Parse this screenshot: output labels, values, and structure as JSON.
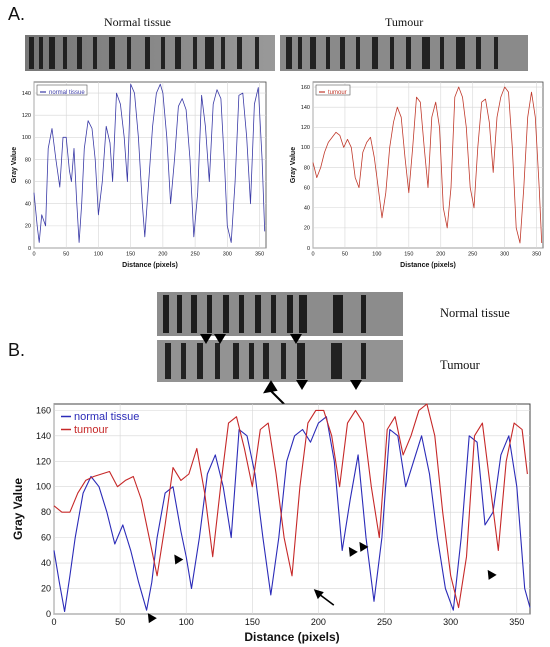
{
  "panels": {
    "a": {
      "letter": "A.",
      "left_caption": "Normal tissue",
      "right_caption": "Tumour"
    },
    "b": {
      "letter": "B.",
      "top_caption": "Normal tissue",
      "bottom_caption": "Tumour"
    }
  },
  "colors": {
    "normal": "#3a3aa6",
    "tumour": "#c0392b",
    "normal_b": "#2b2bb8",
    "tumour_b": "#c62828"
  },
  "chart_data": [
    {
      "type": "line",
      "panel": "A-left",
      "xlabel": "Distance (pixels)",
      "ylabel": "Gray Value",
      "xlim": [
        0,
        360
      ],
      "ylim": [
        0,
        150
      ],
      "xticks": [
        0,
        50,
        100,
        150,
        200,
        250,
        300,
        350
      ],
      "yticks": [
        0,
        20,
        40,
        60,
        80,
        100,
        120,
        140
      ],
      "legend_position": "top-left",
      "series": [
        {
          "name": "normal tissue",
          "x": [
            0,
            5,
            8,
            12,
            18,
            22,
            28,
            34,
            40,
            45,
            50,
            55,
            58,
            62,
            66,
            70,
            74,
            78,
            84,
            90,
            95,
            100,
            106,
            112,
            118,
            122,
            128,
            134,
            140,
            145,
            150,
            156,
            162,
            168,
            172,
            178,
            184,
            190,
            196,
            200,
            206,
            212,
            218,
            224,
            230,
            236,
            242,
            248,
            254,
            260,
            266,
            272,
            278,
            284,
            290,
            296,
            300,
            306,
            312,
            318,
            324,
            330,
            336,
            342,
            348,
            354,
            358
          ],
          "y": [
            50,
            20,
            5,
            30,
            20,
            90,
            108,
            80,
            55,
            100,
            100,
            70,
            60,
            90,
            45,
            5,
            40,
            90,
            115,
            108,
            80,
            30,
            60,
            110,
            95,
            60,
            140,
            130,
            100,
            60,
            148,
            140,
            100,
            40,
            10,
            60,
            110,
            140,
            148,
            140,
            100,
            40,
            80,
            128,
            135,
            125,
            80,
            10,
            50,
            138,
            110,
            60,
            130,
            143,
            135,
            70,
            20,
            5,
            60,
            138,
            140,
            100,
            40,
            130,
            145,
            80,
            15
          ]
        }
      ]
    },
    {
      "type": "line",
      "panel": "A-right",
      "xlabel": "Distance (pixels)",
      "ylabel": "Gray Value",
      "xlim": [
        0,
        360
      ],
      "ylim": [
        0,
        165
      ],
      "xticks": [
        0,
        50,
        100,
        150,
        200,
        250,
        300,
        350
      ],
      "yticks": [
        0,
        20,
        40,
        60,
        80,
        100,
        120,
        140,
        160
      ],
      "legend_position": "top-left",
      "series": [
        {
          "name": "tumour",
          "x": [
            0,
            6,
            12,
            18,
            24,
            30,
            36,
            42,
            48,
            54,
            60,
            66,
            72,
            78,
            84,
            90,
            96,
            102,
            108,
            114,
            120,
            126,
            132,
            138,
            144,
            150,
            156,
            162,
            168,
            174,
            180,
            186,
            192,
            198,
            204,
            210,
            216,
            222,
            228,
            234,
            240,
            246,
            252,
            258,
            264,
            270,
            276,
            282,
            288,
            294,
            300,
            306,
            312,
            318,
            324,
            330,
            336,
            342,
            348,
            354,
            358
          ],
          "y": [
            85,
            70,
            80,
            95,
            105,
            110,
            115,
            112,
            100,
            108,
            100,
            70,
            60,
            95,
            105,
            110,
            90,
            60,
            30,
            55,
            100,
            125,
            140,
            130,
            90,
            55,
            100,
            150,
            145,
            100,
            60,
            130,
            145,
            120,
            40,
            20,
            60,
            150,
            160,
            150,
            120,
            60,
            40,
            100,
            145,
            148,
            125,
            75,
            130,
            150,
            160,
            155,
            100,
            20,
            5,
            60,
            130,
            155,
            130,
            60,
            5
          ]
        }
      ]
    },
    {
      "type": "line",
      "panel": "B",
      "xlabel": "Distance (pixels)",
      "ylabel": "Gray Value",
      "xlim": [
        0,
        360
      ],
      "ylim": [
        0,
        165
      ],
      "xticks": [
        0,
        50,
        100,
        150,
        200,
        250,
        300,
        350
      ],
      "yticks": [
        0,
        20,
        40,
        60,
        80,
        100,
        120,
        140,
        160
      ],
      "legend_position": "top-left",
      "series": [
        {
          "name": "normal tissue",
          "x": [
            0,
            4,
            8,
            12,
            16,
            22,
            28,
            34,
            40,
            46,
            52,
            58,
            64,
            70,
            74,
            78,
            84,
            90,
            96,
            100,
            104,
            110,
            116,
            122,
            128,
            134,
            140,
            146,
            152,
            158,
            164,
            170,
            176,
            182,
            188,
            194,
            200,
            206,
            212,
            218,
            224,
            230,
            236,
            242,
            248,
            254,
            260,
            266,
            272,
            278,
            284,
            290,
            296,
            302,
            308,
            314,
            320,
            326,
            332,
            338,
            344,
            350,
            356,
            360
          ],
          "y": [
            50,
            25,
            2,
            30,
            60,
            95,
            108,
            100,
            80,
            55,
            70,
            50,
            25,
            3,
            25,
            60,
            95,
            100,
            65,
            45,
            20,
            60,
            110,
            125,
            100,
            60,
            145,
            140,
            110,
            60,
            15,
            60,
            120,
            140,
            145,
            135,
            150,
            155,
            120,
            50,
            90,
            125,
            60,
            10,
            60,
            145,
            140,
            100,
            120,
            140,
            110,
            60,
            20,
            3,
            60,
            140,
            135,
            70,
            80,
            125,
            140,
            100,
            20,
            5
          ]
        },
        {
          "name": "tumour",
          "x": [
            0,
            6,
            12,
            18,
            24,
            30,
            36,
            42,
            48,
            54,
            60,
            66,
            72,
            78,
            84,
            90,
            96,
            102,
            108,
            114,
            120,
            126,
            132,
            138,
            144,
            150,
            156,
            162,
            168,
            174,
            180,
            186,
            192,
            198,
            204,
            210,
            216,
            222,
            228,
            234,
            240,
            246,
            252,
            258,
            264,
            270,
            276,
            282,
            288,
            294,
            300,
            306,
            312,
            318,
            324,
            330,
            336,
            342,
            348,
            354,
            358
          ],
          "y": [
            85,
            80,
            80,
            95,
            105,
            108,
            110,
            112,
            100,
            105,
            108,
            90,
            60,
            30,
            70,
            115,
            105,
            110,
            130,
            95,
            45,
            100,
            150,
            155,
            130,
            100,
            145,
            150,
            110,
            60,
            30,
            100,
            150,
            160,
            160,
            140,
            100,
            150,
            160,
            150,
            100,
            60,
            145,
            155,
            125,
            140,
            160,
            165,
            140,
            80,
            30,
            5,
            45,
            140,
            150,
            100,
            50,
            120,
            150,
            145,
            110
          ]
        }
      ]
    }
  ]
}
